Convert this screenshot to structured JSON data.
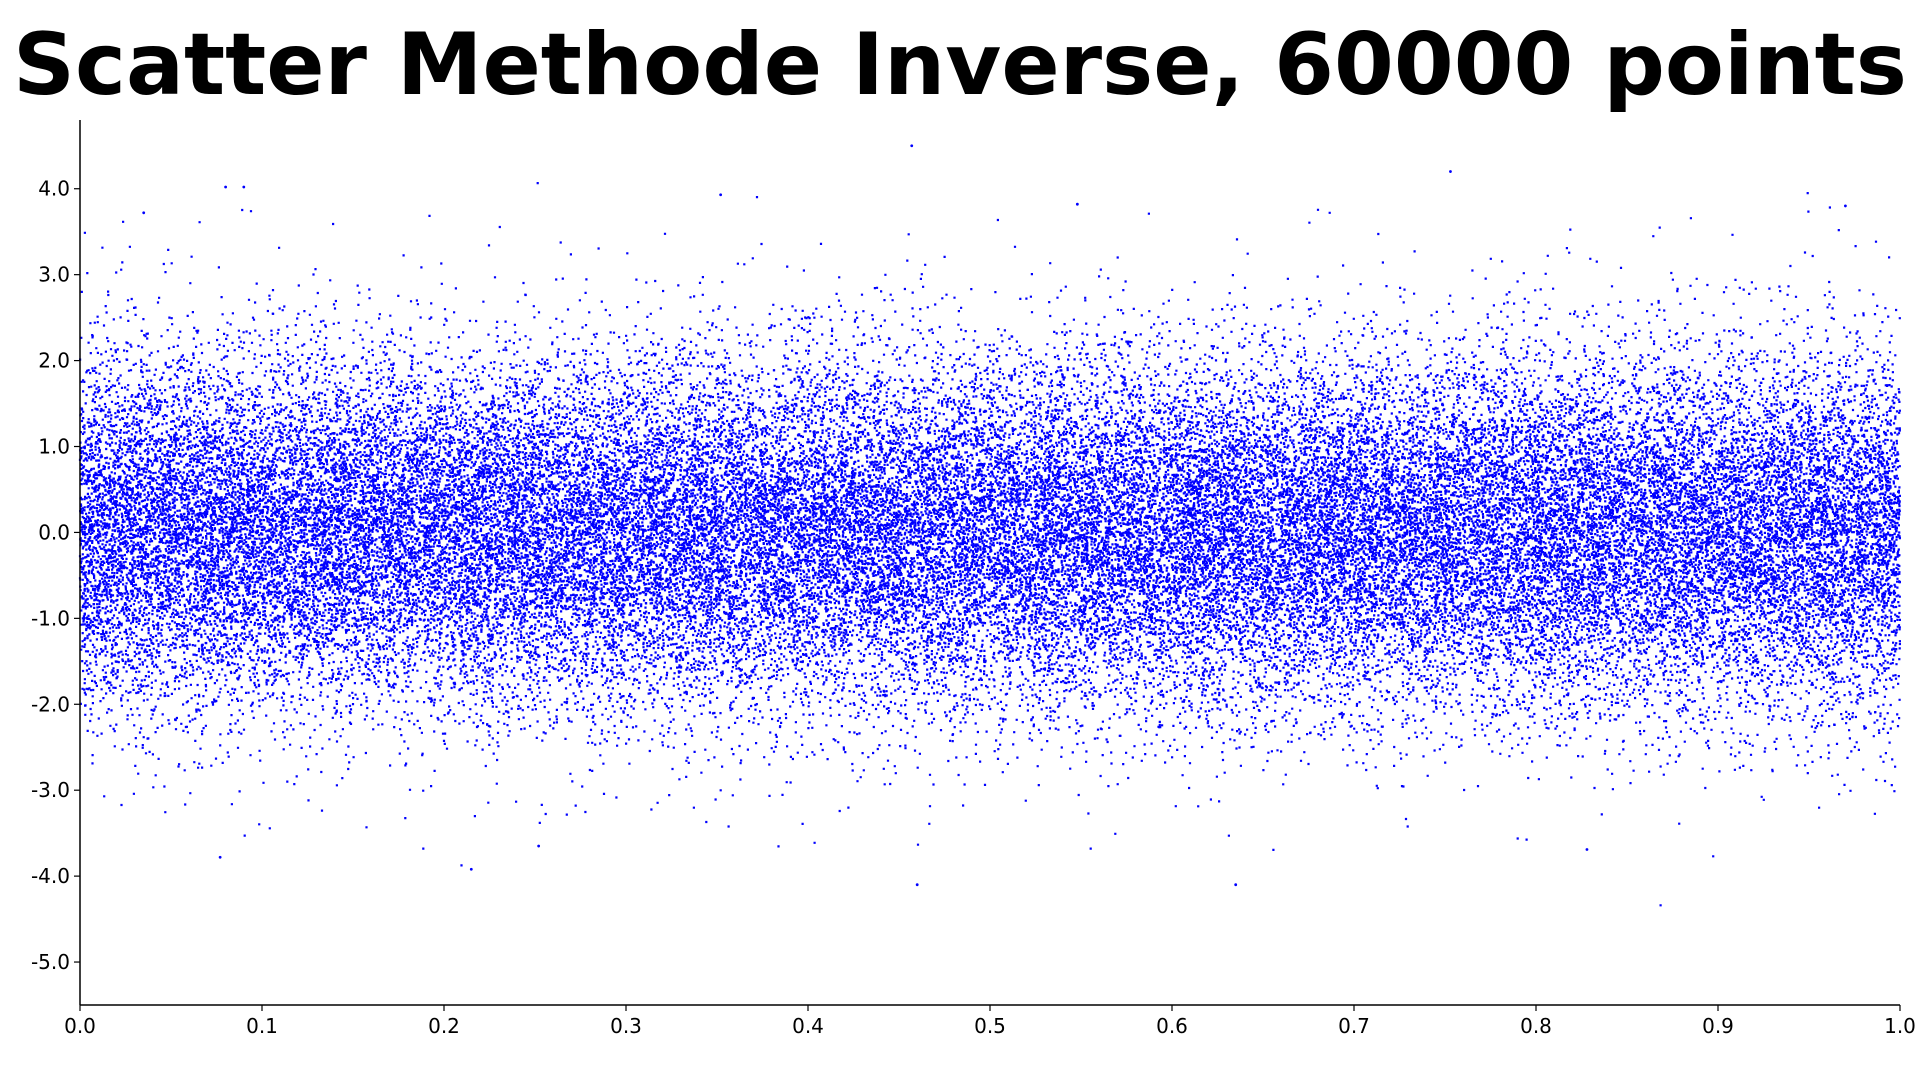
{
  "chart_data": {
    "type": "scatter",
    "title": "Scatter Methode Inverse, 60000 points",
    "xlabel": "",
    "ylabel": "",
    "xlim": [
      0.0,
      1.0
    ],
    "ylim": [
      -5.5,
      4.8
    ],
    "x_ticks": [
      "0.0",
      "0.1",
      "0.2",
      "0.3",
      "0.4",
      "0.5",
      "0.6",
      "0.7",
      "0.8",
      "0.9",
      "1.0"
    ],
    "y_ticks": [
      "-5.0",
      "-4.0",
      "-3.0",
      "-2.0",
      "-1.0",
      "0.0",
      "1.0",
      "2.0",
      "3.0",
      "4.0"
    ],
    "grid": false,
    "legend": "none",
    "series_color": "#0000ff",
    "point_count": 60000,
    "distribution": {
      "x": "uniform on [0, 1]",
      "y": "standard normal, mean 0.0, std 1.0"
    },
    "notable_points": [
      {
        "x": 0.457,
        "y": 4.5
      },
      {
        "x": 0.753,
        "y": 4.2
      },
      {
        "x": 0.08,
        "y": 4.02
      },
      {
        "x": 0.09,
        "y": 4.02
      },
      {
        "x": 0.035,
        "y": 3.72
      },
      {
        "x": 0.97,
        "y": 3.8
      },
      {
        "x": 0.548,
        "y": 3.82
      },
      {
        "x": 0.352,
        "y": 3.93
      },
      {
        "x": 0.215,
        "y": -3.92
      },
      {
        "x": 0.46,
        "y": -4.1
      },
      {
        "x": 0.635,
        "y": -4.1
      },
      {
        "x": 0.077,
        "y": -3.78
      },
      {
        "x": 0.828,
        "y": -3.69
      },
      {
        "x": 0.252,
        "y": -3.65
      }
    ]
  }
}
